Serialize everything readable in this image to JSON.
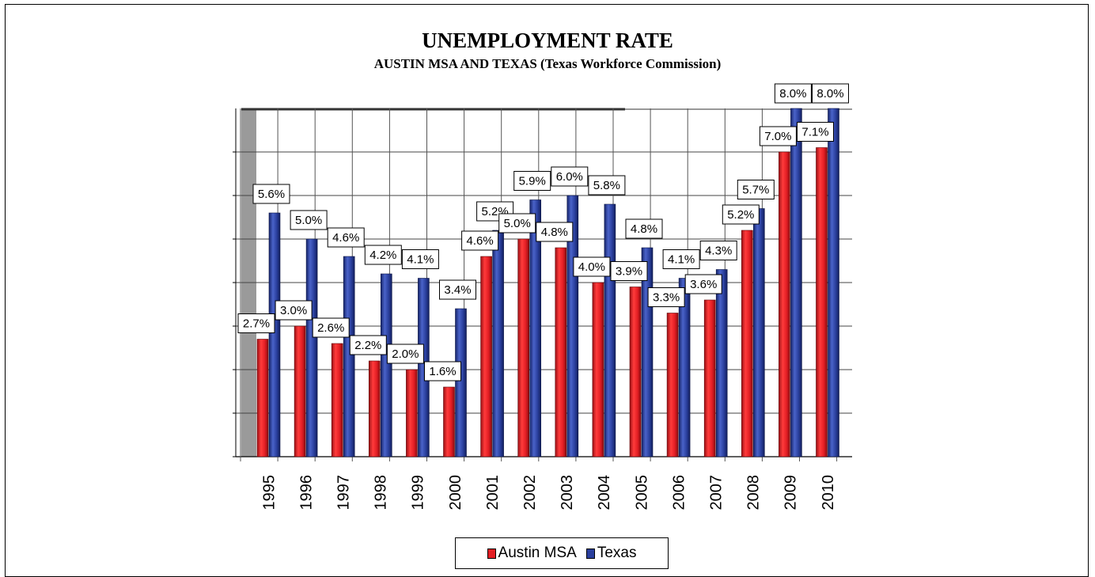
{
  "chart_data": {
    "type": "bar",
    "title": "UNEMPLOYMENT RATE",
    "subtitle": "AUSTIN MSA AND TEXAS (Texas Workforce Commission)",
    "categories": [
      "1995",
      "1996",
      "1997",
      "1998",
      "1999",
      "2000",
      "2001",
      "2002",
      "2003",
      "2004",
      "2005",
      "2006",
      "2007",
      "2008",
      "2009",
      "2010"
    ],
    "series": [
      {
        "name": "Austin MSA",
        "color": "#e31e24",
        "values": [
          2.7,
          3.0,
          2.6,
          2.2,
          2.0,
          1.6,
          4.6,
          5.0,
          4.8,
          4.0,
          3.9,
          3.3,
          3.6,
          5.2,
          7.0,
          7.1
        ],
        "labels": [
          "2.7%",
          "3.0%",
          "2.6%",
          "2.2%",
          "2.0%",
          "1.6%",
          "4.6%",
          "5.0%",
          "4.8%",
          "4.0%",
          "3.9%",
          "3.3%",
          "3.6%",
          "5.2%",
          "7.0%",
          "7.1%"
        ]
      },
      {
        "name": "Texas",
        "color": "#2a3f9d",
        "values": [
          5.6,
          5.0,
          4.6,
          4.2,
          4.1,
          3.4,
          5.2,
          5.9,
          6.0,
          5.8,
          4.8,
          4.1,
          4.3,
          5.7,
          8.0,
          8.0
        ],
        "labels": [
          "5.6%",
          "5.0%",
          "4.6%",
          "4.2%",
          "4.1%",
          "3.4%",
          "5.2%",
          "5.9%",
          "6.0%",
          "5.8%",
          "4.8%",
          "4.1%",
          "4.3%",
          "5.7%",
          "8.0%",
          "8.0%"
        ]
      }
    ],
    "ylim": [
      0,
      8
    ],
    "grid": true,
    "legend_position": "bottom"
  }
}
